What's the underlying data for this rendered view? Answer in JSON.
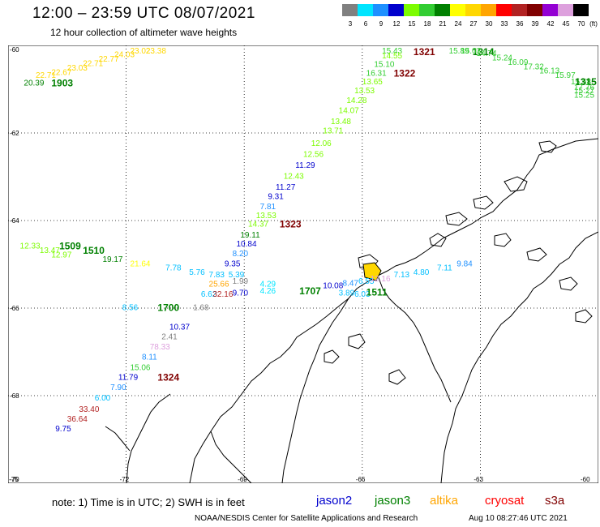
{
  "header": {
    "title": "12:00 – 23:59 UTC 08/07/2021",
    "subtitle": "12 hour collection of altimeter wave heights"
  },
  "color_scale": {
    "unit_label": "(ft)",
    "bins": [
      {
        "label": "3",
        "color": "#808080"
      },
      {
        "label": "6",
        "color": "#00e5ff"
      },
      {
        "label": "9",
        "color": "#1e90ff"
      },
      {
        "label": "12",
        "color": "#0000cd"
      },
      {
        "label": "15",
        "color": "#7cfc00"
      },
      {
        "label": "18",
        "color": "#32cd32"
      },
      {
        "label": "21",
        "color": "#008000"
      },
      {
        "label": "24",
        "color": "#ffff00"
      },
      {
        "label": "27",
        "color": "#ffd700"
      },
      {
        "label": "30",
        "color": "#ffa500"
      },
      {
        "label": "33",
        "color": "#ff0000"
      },
      {
        "label": "36",
        "color": "#b22222"
      },
      {
        "label": "39",
        "color": "#800000"
      },
      {
        "label": "42",
        "color": "#9400d3"
      },
      {
        "label": "45",
        "color": "#dda0dd"
      },
      {
        "label": "70",
        "color": "#000000"
      }
    ]
  },
  "axes": {
    "lat_labels": [
      "-60",
      "-62",
      "-64",
      "-66",
      "-68",
      "-70"
    ],
    "lon_labels": [
      "-75",
      "-72",
      "-69",
      "-66",
      "-63",
      "-60"
    ]
  },
  "chart_data": {
    "type": "scatter",
    "x_label": "longitude",
    "y_label": "latitude",
    "xlim": [
      -75,
      -60
    ],
    "ylim": [
      -70,
      -60
    ],
    "labels": [
      {
        "t": "20.39",
        "lon": -74.6,
        "lat": -60.82,
        "c": "#008000"
      },
      {
        "t": "1903",
        "lon": -73.9,
        "lat": -60.82,
        "c": "#008000",
        "bold": true
      },
      {
        "t": "22.71",
        "lon": -74.3,
        "lat": -60.65,
        "c": "#ffd700"
      },
      {
        "t": "22.67",
        "lon": -73.9,
        "lat": -60.58,
        "c": "#ffd700"
      },
      {
        "t": "23.03",
        "lon": -73.5,
        "lat": -60.48,
        "c": "#ffd700"
      },
      {
        "t": "22.71",
        "lon": -73.1,
        "lat": -60.38,
        "c": "#ffd700"
      },
      {
        "t": "22.77",
        "lon": -72.7,
        "lat": -60.28,
        "c": "#ffd700"
      },
      {
        "t": "24.03",
        "lon": -72.3,
        "lat": -60.18,
        "c": "#ffd700"
      },
      {
        "t": "23.02",
        "lon": -71.9,
        "lat": -60.08,
        "c": "#ffd700"
      },
      {
        "t": "23.38",
        "lon": -71.5,
        "lat": -59.98,
        "c": "#ffd700"
      },
      {
        "t": "15.43",
        "lon": -65.5,
        "lat": -59.98,
        "c": "#32cd32"
      },
      {
        "t": "1321",
        "lon": -64.7,
        "lat": -59.98,
        "c": "#800000",
        "bold": true
      },
      {
        "t": "15.89",
        "lon": -63.8,
        "lat": -59.98,
        "c": "#32cd32"
      },
      {
        "t": "1314",
        "lon": -63.2,
        "lat": -59.98,
        "c": "#008000",
        "bold": true
      },
      {
        "t": "15.03",
        "lon": -63.5,
        "lat": -60.05,
        "c": "#32cd32"
      },
      {
        "t": "14.74",
        "lon": -63.1,
        "lat": -60.15,
        "c": "#32cd32"
      },
      {
        "t": "15.24",
        "lon": -62.7,
        "lat": -60.25,
        "c": "#32cd32"
      },
      {
        "t": "16.09",
        "lon": -62.3,
        "lat": -60.35,
        "c": "#32cd32"
      },
      {
        "t": "17.32",
        "lon": -61.9,
        "lat": -60.45,
        "c": "#32cd32"
      },
      {
        "t": "16.13",
        "lon": -61.5,
        "lat": -60.55,
        "c": "#32cd32"
      },
      {
        "t": "15.97",
        "lon": -61.1,
        "lat": -60.65,
        "c": "#32cd32"
      },
      {
        "t": "15.58",
        "lon": -60.7,
        "lat": -60.8,
        "c": "#32cd32"
      },
      {
        "t": "1315",
        "lon": -60.25,
        "lat": -60.8,
        "c": "#008000",
        "bold": true
      },
      {
        "t": "17.76",
        "lon": -60.3,
        "lat": -60.93,
        "c": "#32cd32"
      },
      {
        "t": "15.27",
        "lon": -60.0,
        "lat": -61.0,
        "c": "#32cd32"
      },
      {
        "t": "15.25",
        "lon": -59.8,
        "lat": -61.1,
        "c": "#32cd32"
      },
      {
        "t": "14.55",
        "lon": -65.5,
        "lat": -60.2,
        "c": "#7cfc00"
      },
      {
        "t": "15.10",
        "lon": -65.7,
        "lat": -60.4,
        "c": "#32cd32"
      },
      {
        "t": "16.31",
        "lon": -65.9,
        "lat": -60.6,
        "c": "#32cd32"
      },
      {
        "t": "1322",
        "lon": -65.2,
        "lat": -60.6,
        "c": "#800000",
        "bold": true
      },
      {
        "t": "13.65",
        "lon": -66.0,
        "lat": -60.8,
        "c": "#7cfc00"
      },
      {
        "t": "13.53",
        "lon": -66.2,
        "lat": -61.0,
        "c": "#7cfc00"
      },
      {
        "t": "14.28",
        "lon": -66.4,
        "lat": -61.22,
        "c": "#7cfc00"
      },
      {
        "t": "14.07",
        "lon": -66.6,
        "lat": -61.45,
        "c": "#7cfc00"
      },
      {
        "t": "13.48",
        "lon": -66.8,
        "lat": -61.7,
        "c": "#7cfc00"
      },
      {
        "t": "13.71",
        "lon": -67.0,
        "lat": -61.92,
        "c": "#7cfc00"
      },
      {
        "t": "12.06",
        "lon": -67.3,
        "lat": -62.2,
        "c": "#7cfc00"
      },
      {
        "t": "12.56",
        "lon": -67.5,
        "lat": -62.45,
        "c": "#7cfc00"
      },
      {
        "t": "11.29",
        "lon": -67.7,
        "lat": -62.7,
        "c": "#0000cd"
      },
      {
        "t": "12.43",
        "lon": -68.0,
        "lat": -62.95,
        "c": "#7cfc00"
      },
      {
        "t": "11.27",
        "lon": -68.2,
        "lat": -63.2,
        "c": "#0000cd"
      },
      {
        "t": "9.31",
        "lon": -68.4,
        "lat": -63.42,
        "c": "#0000cd"
      },
      {
        "t": "7.81",
        "lon": -68.6,
        "lat": -63.65,
        "c": "#1e90ff"
      },
      {
        "t": "13.53",
        "lon": -68.7,
        "lat": -63.85,
        "c": "#7cfc00"
      },
      {
        "t": "14.37",
        "lon": -68.9,
        "lat": -64.05,
        "c": "#7cfc00"
      },
      {
        "t": "1323",
        "lon": -68.1,
        "lat": -64.05,
        "c": "#800000",
        "bold": true
      },
      {
        "t": "19.11",
        "lon": -69.1,
        "lat": -64.3,
        "c": "#008000"
      },
      {
        "t": "10.84",
        "lon": -69.2,
        "lat": -64.5,
        "c": "#0000cd"
      },
      {
        "t": "8.20",
        "lon": -69.3,
        "lat": -64.72,
        "c": "#1e90ff"
      },
      {
        "t": "9.35",
        "lon": -69.5,
        "lat": -64.95,
        "c": "#0000cd"
      },
      {
        "t": "12.33",
        "lon": -74.7,
        "lat": -64.55,
        "c": "#7cfc00"
      },
      {
        "t": "13.47",
        "lon": -74.2,
        "lat": -64.65,
        "c": "#7cfc00"
      },
      {
        "t": "1509",
        "lon": -73.7,
        "lat": -64.55,
        "c": "#008000",
        "bold": true
      },
      {
        "t": "1510",
        "lon": -73.1,
        "lat": -64.65,
        "c": "#008000",
        "bold": true
      },
      {
        "t": "12.97",
        "lon": -73.9,
        "lat": -64.75,
        "c": "#7cfc00"
      },
      {
        "t": "19.17",
        "lon": -72.6,
        "lat": -64.85,
        "c": "#008000"
      },
      {
        "t": "21.64",
        "lon": -71.9,
        "lat": -64.95,
        "c": "#ffff00"
      },
      {
        "t": "7.78",
        "lon": -71.0,
        "lat": -65.05,
        "c": "#00bfff"
      },
      {
        "t": "5.76",
        "lon": -70.4,
        "lat": -65.15,
        "c": "#00bfff"
      },
      {
        "t": "7.83",
        "lon": -69.9,
        "lat": -65.2,
        "c": "#00bfff"
      },
      {
        "t": "5.39",
        "lon": -69.4,
        "lat": -65.2,
        "c": "#00bfff"
      },
      {
        "t": "25.66",
        "lon": -69.9,
        "lat": -65.42,
        "c": "#ffa500"
      },
      {
        "t": "1.99",
        "lon": -69.3,
        "lat": -65.35,
        "c": "#808080"
      },
      {
        "t": "6.62",
        "lon": -70.1,
        "lat": -65.65,
        "c": "#00bfff"
      },
      {
        "t": "32.16",
        "lon": -69.8,
        "lat": -65.65,
        "c": "#b22222"
      },
      {
        "t": "9.70",
        "lon": -69.3,
        "lat": -65.62,
        "c": "#0000cd"
      },
      {
        "t": "4.29",
        "lon": -68.6,
        "lat": -65.42,
        "c": "#00e5ff"
      },
      {
        "t": "4.26",
        "lon": -68.6,
        "lat": -65.57,
        "c": "#00e5ff"
      },
      {
        "t": "1707",
        "lon": -67.6,
        "lat": -65.57,
        "c": "#008000",
        "bold": true
      },
      {
        "t": "10.08",
        "lon": -67.0,
        "lat": -65.45,
        "c": "#0000cd"
      },
      {
        "t": "8.47",
        "lon": -66.5,
        "lat": -65.4,
        "c": "#1e90ff"
      },
      {
        "t": "6.55",
        "lon": -66.1,
        "lat": -65.35,
        "c": "#00bfff"
      },
      {
        "t": "12.16",
        "lon": -65.8,
        "lat": -65.3,
        "c": "#dda0dd"
      },
      {
        "t": "7.13",
        "lon": -65.2,
        "lat": -65.2,
        "c": "#00bfff"
      },
      {
        "t": "4.80",
        "lon": -64.7,
        "lat": -65.15,
        "c": "#00bfff"
      },
      {
        "t": "7.11",
        "lon": -64.1,
        "lat": -65.05,
        "c": "#00bfff"
      },
      {
        "t": "9.84",
        "lon": -63.6,
        "lat": -64.95,
        "c": "#1e90ff"
      },
      {
        "t": "3.89",
        "lon": -66.6,
        "lat": -65.62,
        "c": "#00bfff"
      },
      {
        "t": "6.03",
        "lon": -66.2,
        "lat": -65.65,
        "c": "#00bfff"
      },
      {
        "t": "1511",
        "lon": -65.9,
        "lat": -65.6,
        "c": "#008000",
        "bold": true
      },
      {
        "t": "8.56",
        "lon": -72.1,
        "lat": -65.95,
        "c": "#00bfff"
      },
      {
        "t": "1700",
        "lon": -71.2,
        "lat": -65.95,
        "c": "#008000",
        "bold": true
      },
      {
        "t": "1.68",
        "lon": -70.3,
        "lat": -65.95,
        "c": "#808080"
      },
      {
        "t": "10.37",
        "lon": -70.9,
        "lat": -66.4,
        "c": "#0000cd"
      },
      {
        "t": "2.41",
        "lon": -71.1,
        "lat": -66.62,
        "c": "#808080"
      },
      {
        "t": "78.33",
        "lon": -71.4,
        "lat": -66.85,
        "c": "#dda0dd"
      },
      {
        "t": "8.11",
        "lon": -71.6,
        "lat": -67.08,
        "c": "#1e90ff"
      },
      {
        "t": "15.06",
        "lon": -71.9,
        "lat": -67.32,
        "c": "#32cd32"
      },
      {
        "t": "11.79",
        "lon": -72.2,
        "lat": -67.55,
        "c": "#0000cd"
      },
      {
        "t": "1324",
        "lon": -71.2,
        "lat": -67.55,
        "c": "#800000",
        "bold": true
      },
      {
        "t": "7.90",
        "lon": -72.4,
        "lat": -67.78,
        "c": "#1e90ff"
      },
      {
        "t": "6.00",
        "lon": -72.8,
        "lat": -68.02,
        "c": "#00bfff"
      },
      {
        "t": "33.40",
        "lon": -73.2,
        "lat": -68.28,
        "c": "#b22222"
      },
      {
        "t": "36.64",
        "lon": -73.5,
        "lat": -68.5,
        "c": "#b22222"
      },
      {
        "t": "9.75",
        "lon": -73.8,
        "lat": -68.72,
        "c": "#0000cd"
      }
    ]
  },
  "footer": {
    "note": "note: 1) Time is in UTC; 2) SWH is in feet",
    "satellites": [
      {
        "name": "jason2",
        "color": "#0000cd"
      },
      {
        "name": "jason3",
        "color": "#008000"
      },
      {
        "name": "altika",
        "color": "#ffa500"
      },
      {
        "name": "cryosat",
        "color": "#ff0000"
      },
      {
        "name": "s3a",
        "color": "#800000"
      }
    ],
    "credit": "NOAA/NESDIS Center for Satellite Applications and Research",
    "timestamp": "Aug 10 08:27:46 UTC 2021"
  }
}
